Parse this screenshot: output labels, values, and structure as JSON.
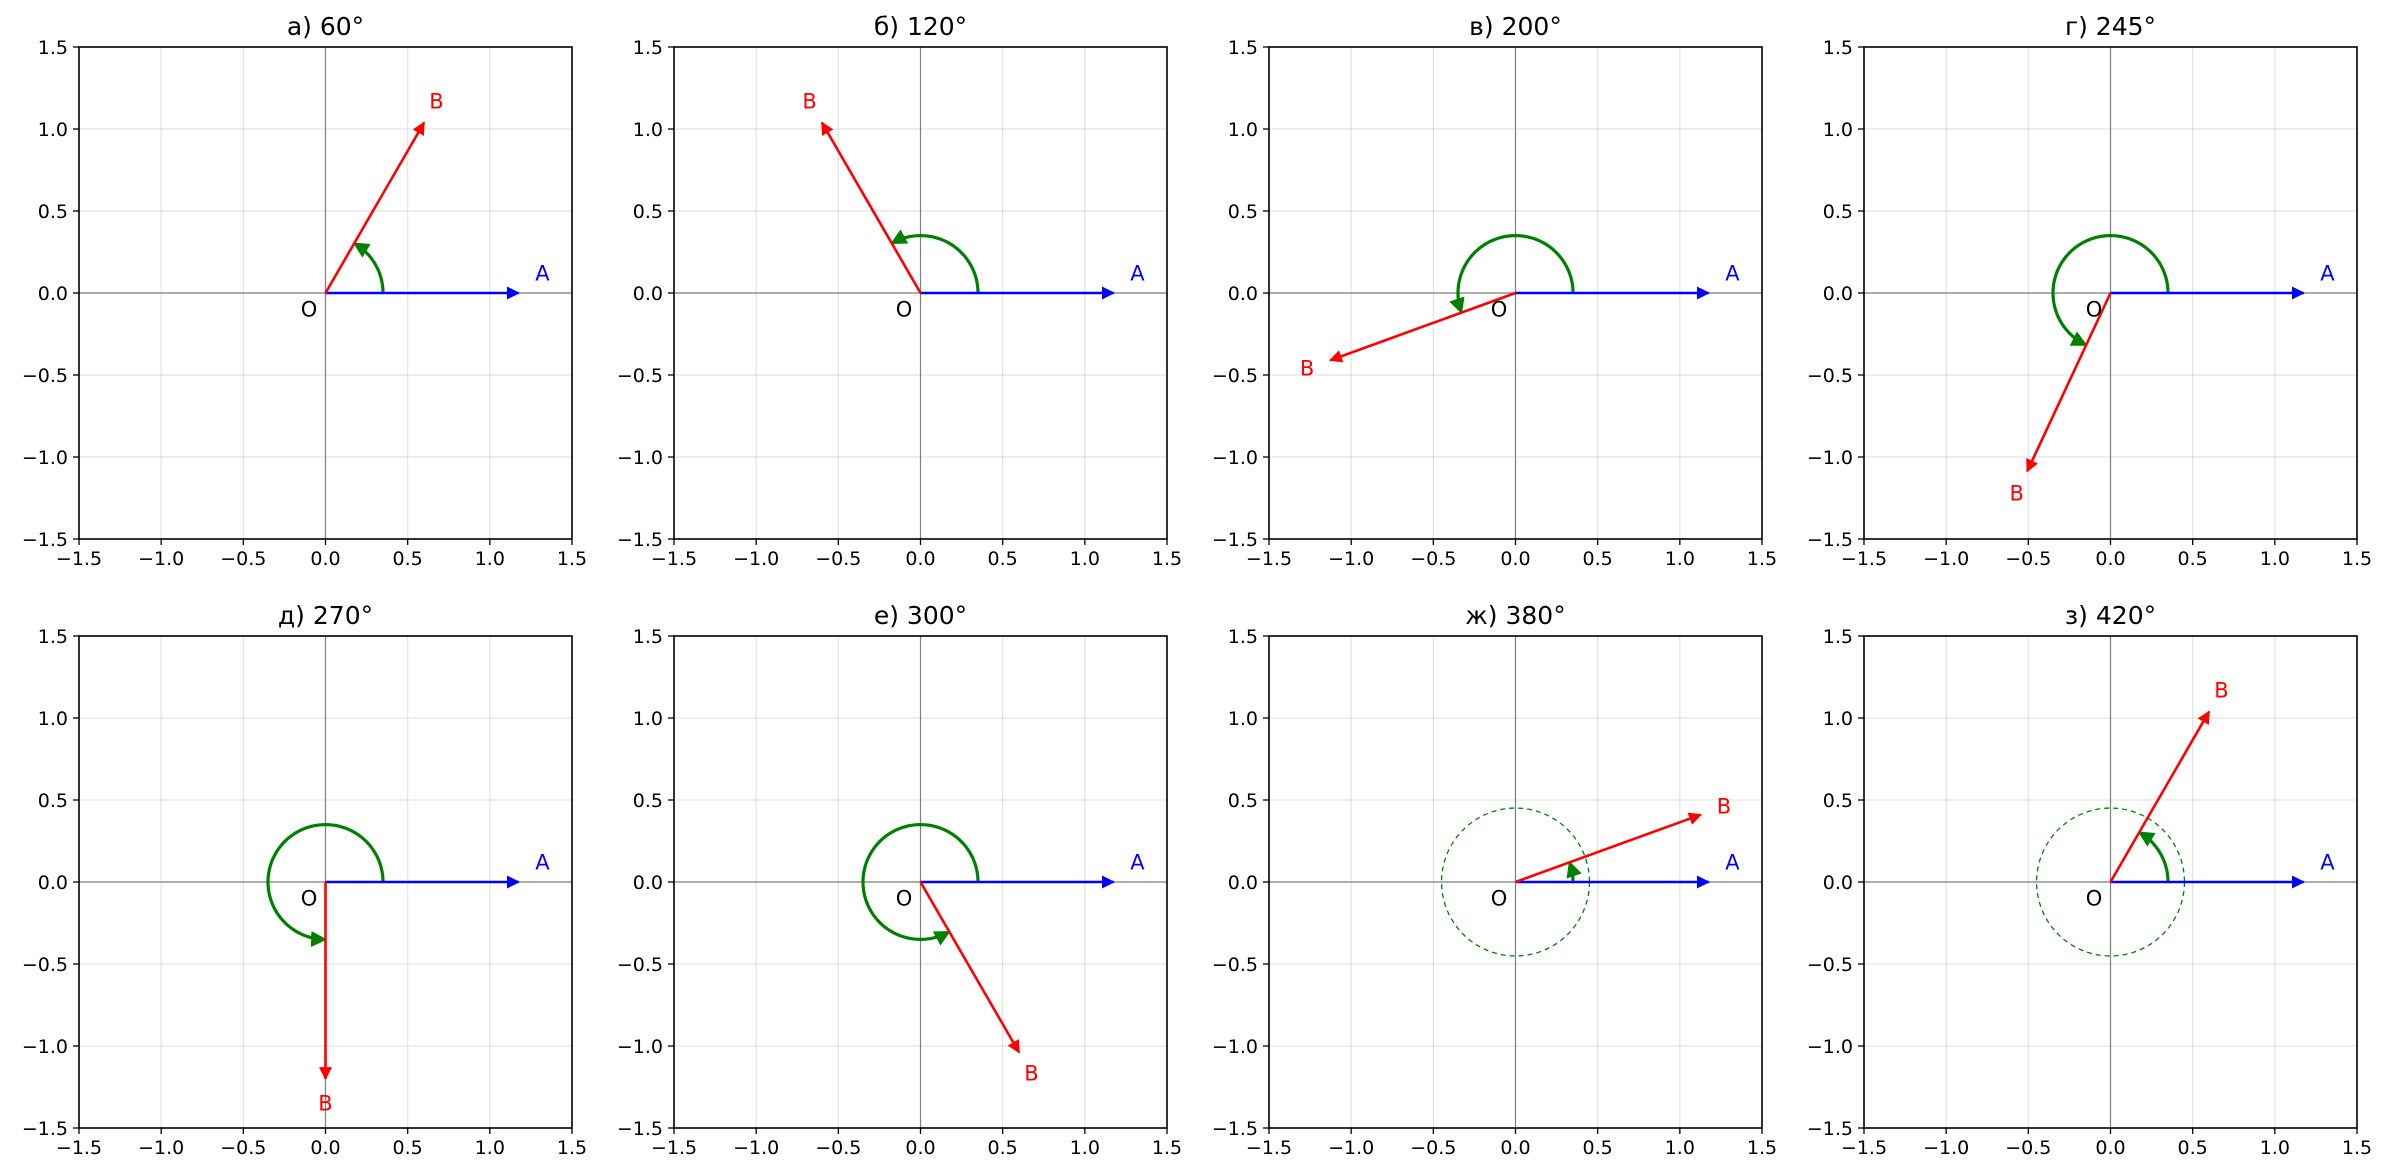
{
  "chart_data": [
    {
      "type": "angle-diagram",
      "title": "а) 60°",
      "angle_deg": 60,
      "turn_circle": false
    },
    {
      "type": "angle-diagram",
      "title": "б) 120°",
      "angle_deg": 120,
      "turn_circle": false
    },
    {
      "type": "angle-diagram",
      "title": "в) 200°",
      "angle_deg": 200,
      "turn_circle": false
    },
    {
      "type": "angle-diagram",
      "title": "г) 245°",
      "angle_deg": 245,
      "turn_circle": false
    },
    {
      "type": "angle-diagram",
      "title": "д) 270°",
      "angle_deg": 270,
      "turn_circle": false
    },
    {
      "type": "angle-diagram",
      "title": "е) 300°",
      "angle_deg": 300,
      "turn_circle": false
    },
    {
      "type": "angle-diagram",
      "title": "ж) 380°",
      "angle_deg": 380,
      "turn_circle": true
    },
    {
      "type": "angle-diagram",
      "title": "з) 420°",
      "angle_deg": 420,
      "turn_circle": true
    }
  ],
  "shared": {
    "xlim": [
      -1.5,
      1.5
    ],
    "ylim": [
      -1.5,
      1.5
    ],
    "ticks": [
      -1.5,
      -1.0,
      -0.5,
      0.0,
      0.5,
      1.0,
      1.5
    ],
    "tick_labels": [
      "−1.5",
      "−1.0",
      "−0.5",
      "0.0",
      "0.5",
      "1.0",
      "1.5"
    ],
    "vector_a": {
      "label": "A",
      "length": 1.2,
      "color": "#0000ff"
    },
    "vector_b": {
      "label": "B",
      "length": 1.2,
      "color": "#ff0000"
    },
    "origin_label": "O",
    "arc": {
      "radius": 0.35,
      "color": "#008000"
    },
    "turn_circle": {
      "radius": 0.45,
      "color": "#008000"
    },
    "grid": true
  }
}
